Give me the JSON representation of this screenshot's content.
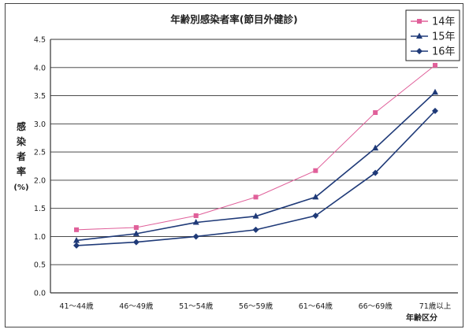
{
  "chart_data": {
    "type": "line",
    "title": "年齢別感染者率(節目外健診)",
    "ylabel_chars": [
      "感",
      "染",
      "者",
      "率",
      "(%)"
    ],
    "xlabel": "年齢区分",
    "categories": [
      "41～44歳",
      "46～49歳",
      "51～54歳",
      "56～59歳",
      "61～64歳",
      "66～69歳",
      "71歳以上"
    ],
    "ylim": [
      0,
      4.5
    ],
    "yticks": [
      "0.0",
      "0.5",
      "1.0",
      "1.5",
      "2.0",
      "2.5",
      "3.0",
      "3.5",
      "4.0",
      "4.5"
    ],
    "grid": true,
    "legend_position": "top-right",
    "series": [
      {
        "name": "14年",
        "values": [
          1.12,
          1.16,
          1.37,
          1.7,
          2.17,
          3.2,
          4.04
        ],
        "color": "#e0609a",
        "marker": "square"
      },
      {
        "name": "15年",
        "values": [
          0.93,
          1.05,
          1.25,
          1.36,
          1.7,
          2.57,
          3.56
        ],
        "color": "#1f3a78",
        "marker": "triangle"
      },
      {
        "name": "16年",
        "values": [
          0.84,
          0.9,
          1.0,
          1.12,
          1.37,
          2.13,
          3.23
        ],
        "color": "#1f3a78",
        "marker": "diamond"
      }
    ]
  }
}
